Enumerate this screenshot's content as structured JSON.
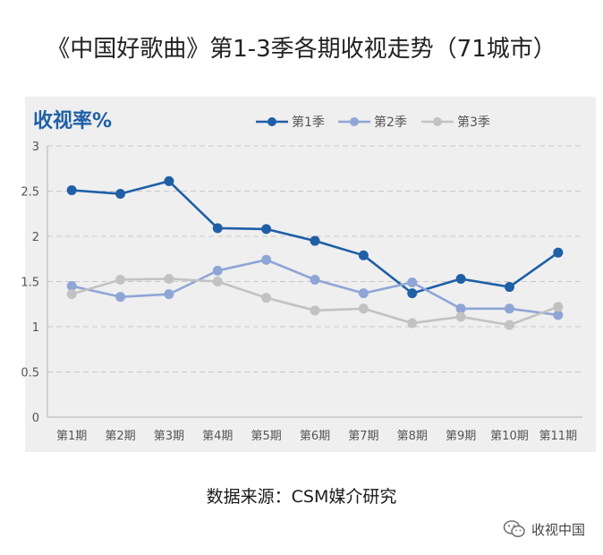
{
  "title": "《中国好歌曲》第1-3季各期收视走势（71城市）",
  "source": "数据来源：CSM媒介研究",
  "watermark": {
    "text": "收视中国",
    "icon": "wechat-icon"
  },
  "colors": {
    "panel_bg": "#efefef",
    "grid": "#c8c8c8",
    "axis_text": "#555555",
    "ylabel": "#1f5fa6"
  },
  "chart_data": {
    "type": "line",
    "title": "",
    "ylabel": "收视率%",
    "xlabel": "",
    "ylim": [
      0,
      3
    ],
    "yticks": [
      "0",
      "0.5",
      "1",
      "1.5",
      "2",
      "2.5",
      "3"
    ],
    "ytick_values": [
      0,
      0.5,
      1,
      1.5,
      2,
      2.5,
      3
    ],
    "grid": true,
    "legend_position": "top",
    "categories": [
      "第1期",
      "第2期",
      "第3期",
      "第4期",
      "第5期",
      "第6期",
      "第7期",
      "第8期",
      "第9期",
      "第10期",
      "第11期"
    ],
    "series": [
      {
        "name": "第1季",
        "color": "#1f5fa6",
        "values": [
          2.51,
          2.47,
          2.61,
          2.09,
          2.08,
          1.95,
          1.79,
          1.37,
          1.53,
          1.44,
          1.82
        ]
      },
      {
        "name": "第2季",
        "color": "#8fa5d6",
        "values": [
          1.45,
          1.33,
          1.36,
          1.62,
          1.74,
          1.52,
          1.37,
          1.49,
          1.2,
          1.2,
          1.13
        ]
      },
      {
        "name": "第3季",
        "color": "#c2c2c2",
        "values": [
          1.36,
          1.52,
          1.53,
          1.5,
          1.32,
          1.18,
          1.2,
          1.04,
          1.11,
          1.02,
          1.22
        ]
      }
    ]
  }
}
